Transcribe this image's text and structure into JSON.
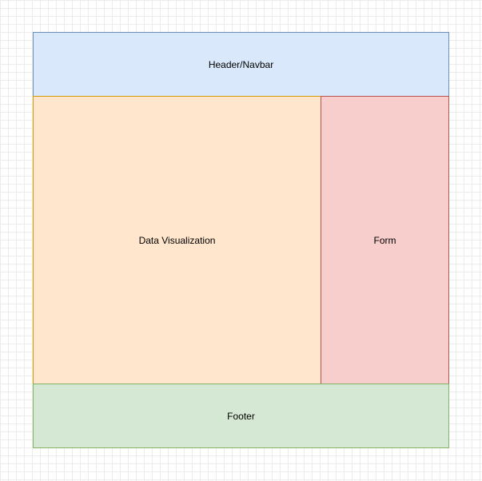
{
  "blocks": {
    "header": {
      "label": "Header/Navbar",
      "fill": "#dae8fc",
      "stroke": "#6c8ebf"
    },
    "data_visualization": {
      "label": "Data Visualization",
      "fill": "#ffe6cc",
      "stroke": "#d79b00"
    },
    "form": {
      "label": "Form",
      "fill": "#f8cecc",
      "stroke": "#b85450"
    },
    "footer": {
      "label": "Footer",
      "fill": "#d5e8d4",
      "stroke": "#82b366"
    }
  },
  "canvas": {
    "grid": true
  }
}
